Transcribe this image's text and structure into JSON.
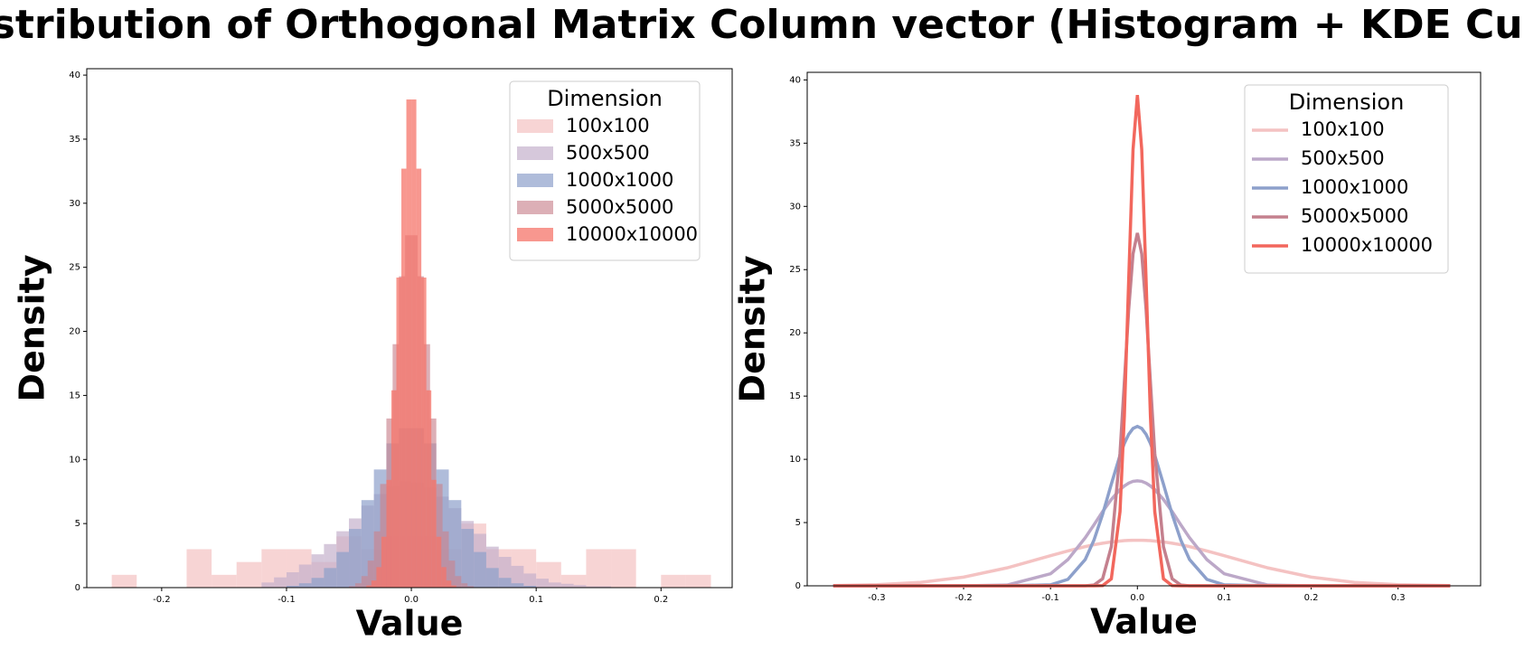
{
  "title": "Distribution of Orthogonal Matrix Column vector (Histogram + KDE Curve)",
  "chart_data": [
    {
      "type": "histogram",
      "xlabel": "Value",
      "ylabel": "Density",
      "legend_title": "Dimension",
      "legend": "upper right",
      "xlim": [
        -0.26,
        0.257
      ],
      "ylim": [
        0,
        40.5
      ],
      "xticks": [
        -0.2,
        -0.1,
        {
          "value": 0,
          "label": "0.0"
        },
        0.1,
        0.2
      ],
      "yticks": [
        0,
        5,
        10,
        15,
        20,
        25,
        30,
        35,
        40
      ],
      "series": [
        {
          "name": "100x100",
          "color": "#f4c2c2",
          "opacity": 0.7,
          "bins": [
            -0.24,
            -0.22,
            -0.2,
            -0.18,
            -0.16,
            -0.14,
            -0.12,
            -0.1,
            -0.08,
            -0.06,
            -0.04,
            -0.02,
            0,
            0.02,
            0.04,
            0.06,
            0.08,
            0.1,
            0.12,
            0.14,
            0.16,
            0.18,
            0.2,
            0.22,
            0.24
          ],
          "values": [
            1,
            0,
            0,
            3,
            1,
            2,
            3,
            3,
            2,
            4,
            3,
            4,
            4,
            3,
            5,
            3,
            3,
            2,
            1,
            3,
            3,
            0,
            1,
            1
          ]
        },
        {
          "name": "500x500",
          "color": "#c4b0cc",
          "opacity": 0.7,
          "bins": [
            -0.12,
            -0.11,
            -0.1,
            -0.09,
            -0.08,
            -0.07,
            -0.06,
            -0.05,
            -0.04,
            -0.03,
            -0.02,
            -0.01,
            0,
            0.01,
            0.02,
            0.03,
            0.04,
            0.05,
            0.06,
            0.07,
            0.08,
            0.09,
            0.1,
            0.11,
            0.12,
            0.13,
            0.14,
            0.15,
            0.16
          ],
          "values": [
            0.4,
            0.8,
            1.2,
            1.8,
            2.6,
            3.4,
            4.4,
            5.4,
            6.4,
            7.3,
            7.9,
            8.3,
            8.2,
            7.8,
            7.1,
            6.2,
            5.2,
            4.2,
            3.2,
            2.4,
            1.7,
            1.1,
            0.7,
            0.4,
            0.3,
            0.2,
            0.1,
            0.1
          ]
        },
        {
          "name": "1000x1000",
          "color": "#8da0cb",
          "opacity": 0.7,
          "bins": [
            -0.1,
            -0.09,
            -0.08,
            -0.07,
            -0.06,
            -0.05,
            -0.04,
            -0.03,
            -0.02,
            -0.01,
            0,
            0.01,
            0.02,
            0.03,
            0.04,
            0.05,
            0.06,
            0.07,
            0.08,
            0.09,
            0.1
          ],
          "values": [
            0.14,
            0.34,
            0.76,
            1.53,
            2.78,
            4.58,
            6.83,
            9.22,
            11.26,
            12.44,
            12.44,
            11.26,
            9.22,
            6.83,
            4.58,
            2.78,
            1.53,
            0.76,
            0.34,
            0.14
          ]
        },
        {
          "name": "5000x5000",
          "color": "#c9848f",
          "opacity": 0.65,
          "bins": [
            -0.05,
            -0.045,
            -0.04,
            -0.035,
            -0.03,
            -0.025,
            -0.02,
            -0.015,
            -0.01,
            -0.005,
            0,
            0.005,
            0.01,
            0.015,
            0.02,
            0.025,
            0.03,
            0.035,
            0.04,
            0.045,
            0.05
          ],
          "values": [
            0.11,
            0.34,
            0.9,
            2.11,
            4.39,
            8.09,
            13.2,
            19.0,
            24.3,
            27.5,
            27.5,
            24.3,
            19.0,
            13.2,
            8.09,
            4.39,
            2.11,
            0.9,
            0.34,
            0.11
          ]
        },
        {
          "name": "10000x10000",
          "color": "#f6746a",
          "opacity": 0.75,
          "bins": [
            -0.04,
            -0.036,
            -0.032,
            -0.028,
            -0.024,
            -0.02,
            -0.016,
            -0.012,
            -0.008,
            -0.004,
            0,
            0.004,
            0.008,
            0.012,
            0.016,
            0.02,
            0.024,
            0.028,
            0.032,
            0.036,
            0.04
          ],
          "values": [
            0.04,
            0.17,
            0.55,
            1.6,
            3.97,
            8.41,
            15.4,
            24.2,
            32.7,
            38.1,
            38.1,
            32.7,
            24.2,
            15.4,
            8.41,
            3.97,
            1.6,
            0.55,
            0.17,
            0.04
          ]
        }
      ]
    },
    {
      "type": "line",
      "xlabel": "Value",
      "ylabel": "Density",
      "legend_title": "Dimension",
      "legend": "upper right",
      "xlim": [
        -0.38,
        0.395
      ],
      "ylim": [
        0,
        40.6
      ],
      "xticks": [
        -0.3,
        -0.2,
        -0.1,
        {
          "value": 0,
          "label": "0.0"
        },
        0.1,
        0.2,
        0.3
      ],
      "yticks": [
        0,
        5,
        10,
        15,
        20,
        25,
        30,
        35,
        40
      ],
      "x": [
        -0.35,
        -0.3,
        -0.25,
        -0.2,
        -0.15,
        -0.1,
        -0.08,
        -0.06,
        -0.05,
        -0.04,
        -0.03,
        -0.02,
        -0.015,
        -0.01,
        -0.005,
        0,
        0.005,
        0.01,
        0.015,
        0.02,
        0.03,
        0.04,
        0.05,
        0.06,
        0.08,
        0.1,
        0.15,
        0.2,
        0.25,
        0.3,
        0.36
      ],
      "series": [
        {
          "name": "100x100",
          "color": "#f4c2c2",
          "values": [
            0.02,
            0.09,
            0.27,
            0.69,
            1.42,
            2.38,
            2.76,
            3.1,
            3.25,
            3.37,
            3.47,
            3.54,
            3.57,
            3.59,
            3.6,
            3.6,
            3.6,
            3.59,
            3.57,
            3.54,
            3.47,
            3.37,
            3.25,
            3.1,
            2.76,
            2.38,
            1.42,
            0.69,
            0.27,
            0.09,
            0.02
          ]
        },
        {
          "name": "500x500",
          "color": "#bca8c8",
          "values": [
            0,
            0,
            0,
            0,
            0.06,
            0.95,
            2.07,
            3.8,
            4.82,
            5.87,
            6.83,
            7.61,
            7.9,
            8.12,
            8.26,
            8.3,
            8.26,
            8.12,
            7.9,
            7.61,
            6.83,
            5.87,
            4.82,
            3.8,
            2.07,
            0.95,
            0.06,
            0,
            0,
            0,
            0
          ]
        },
        {
          "name": "1000x1000",
          "color": "#8da0cb",
          "values": [
            0,
            0,
            0,
            0,
            0,
            0.08,
            0.51,
            2.08,
            3.61,
            5.66,
            8.04,
            10.32,
            11.26,
            11.98,
            12.44,
            12.6,
            12.44,
            11.98,
            11.26,
            10.32,
            8.04,
            5.66,
            3.61,
            2.08,
            0.51,
            0.08,
            0,
            0,
            0,
            0,
            0
          ]
        },
        {
          "name": "5000x5000",
          "color": "#c4808e",
          "values": [
            0,
            0,
            0,
            0,
            0,
            0,
            0,
            0,
            0.06,
            0.56,
            3.09,
            10.49,
            16.1,
            21.85,
            26.25,
            27.9,
            26.25,
            21.85,
            16.1,
            10.49,
            3.09,
            0.56,
            0.06,
            0,
            0,
            0,
            0,
            0,
            0,
            0,
            0
          ]
        },
        {
          "name": "10000x10000",
          "color": "#f2675d",
          "values": [
            0,
            0,
            0,
            0,
            0,
            0,
            0,
            0,
            0,
            0.02,
            0.55,
            5.86,
            13.43,
            24.2,
            34.5,
            38.8,
            34.5,
            24.2,
            13.43,
            5.86,
            0.55,
            0.02,
            0,
            0,
            0,
            0,
            0,
            0,
            0,
            0,
            0
          ]
        }
      ]
    }
  ]
}
